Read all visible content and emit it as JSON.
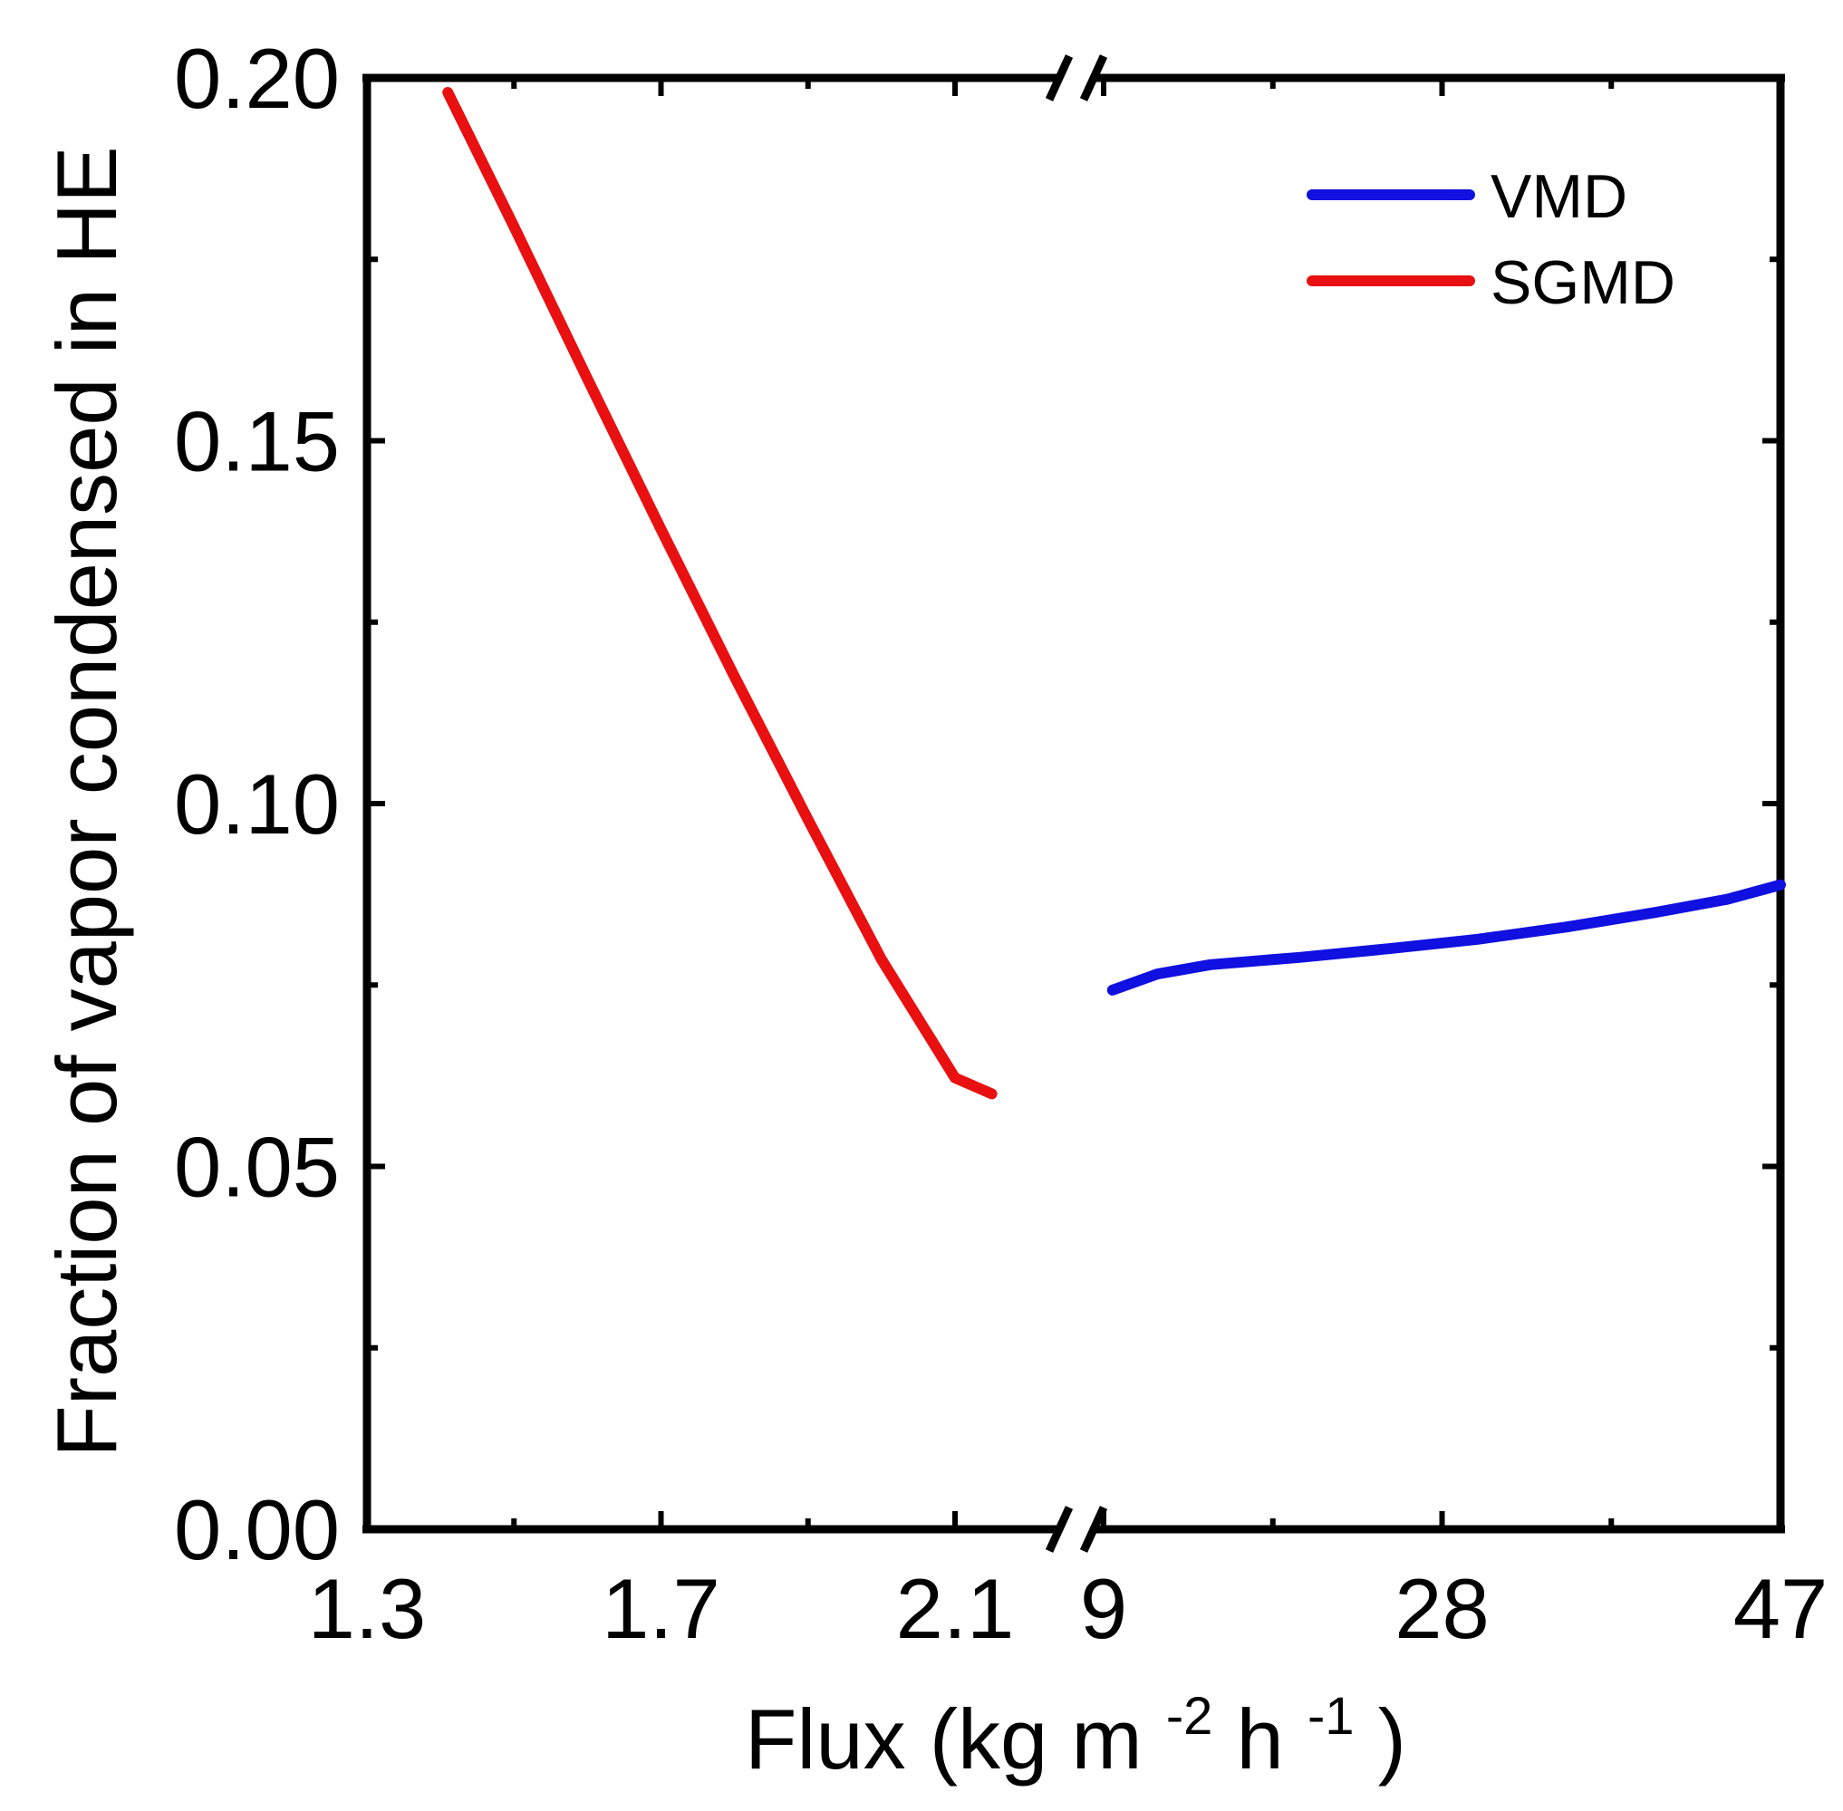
{
  "chart_data": {
    "type": "line",
    "title": "",
    "xlabel": {
      "main": "Flux (kg m",
      "sup1": "-2",
      "mid": " h",
      "sup2": "-1",
      "end": ")"
    },
    "ylabel": "Fraction of vapor condensed in HE",
    "ylim": [
      0.0,
      0.2
    ],
    "y_ticks": [
      "0.00",
      "0.05",
      "0.10",
      "0.15",
      "0.20"
    ],
    "x_segments": [
      {
        "xlim": [
          1.3,
          2.22
        ],
        "tick_labels": [
          "1.3",
          "1.7",
          "2.1"
        ],
        "tick_values": [
          1.3,
          1.7,
          2.1
        ]
      },
      {
        "xlim": [
          9,
          47
        ],
        "tick_labels": [
          "9",
          "28",
          "47"
        ],
        "tick_values": [
          9,
          28,
          47
        ]
      }
    ],
    "axis_break": true,
    "grid": false,
    "legend_position": "top-right",
    "series": [
      {
        "name": "VMD",
        "color": "#1010e0",
        "segment": 2,
        "x": [
          9.5,
          12,
          15,
          20,
          25,
          30,
          35,
          40,
          44,
          47
        ],
        "y": [
          0.0743,
          0.0765,
          0.0778,
          0.0788,
          0.08,
          0.0813,
          0.083,
          0.085,
          0.0868,
          0.0888
        ]
      },
      {
        "name": "SGMD",
        "color": "#e81010",
        "segment": 1,
        "x": [
          1.41,
          1.5,
          1.6,
          1.7,
          1.8,
          1.9,
          2.0,
          2.1,
          2.15
        ],
        "y": [
          0.198,
          0.1795,
          0.1585,
          0.1378,
          0.1175,
          0.0978,
          0.0785,
          0.0622,
          0.06
        ]
      }
    ]
  }
}
